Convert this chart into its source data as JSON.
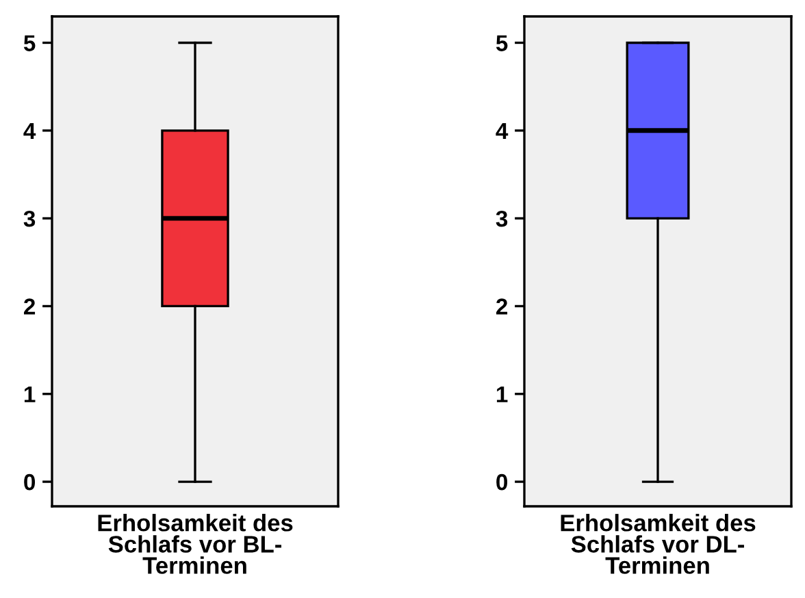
{
  "chart_data": [
    {
      "type": "box",
      "categories": [
        "Erholsamkeit des\nSchlafs vor BL-\nTerminen"
      ],
      "colors": [
        "#f0323a"
      ],
      "boxes": [
        {
          "low": 0,
          "q1": 2,
          "median": 3,
          "q3": 4,
          "high": 5
        }
      ],
      "ylim": [
        -0.28,
        5.3
      ],
      "yticks": [
        0,
        1,
        2,
        3,
        4,
        5
      ]
    },
    {
      "type": "box",
      "categories": [
        "Erholsamkeit des\nSchlafs vor DL-\nTerminen"
      ],
      "colors": [
        "#5a5aff"
      ],
      "boxes": [
        {
          "low": 0,
          "q1": 3,
          "median": 4,
          "q3": 5,
          "high": 5
        }
      ],
      "ylim": [
        -0.28,
        5.3
      ],
      "yticks": [
        0,
        1,
        2,
        3,
        4,
        5
      ]
    }
  ]
}
